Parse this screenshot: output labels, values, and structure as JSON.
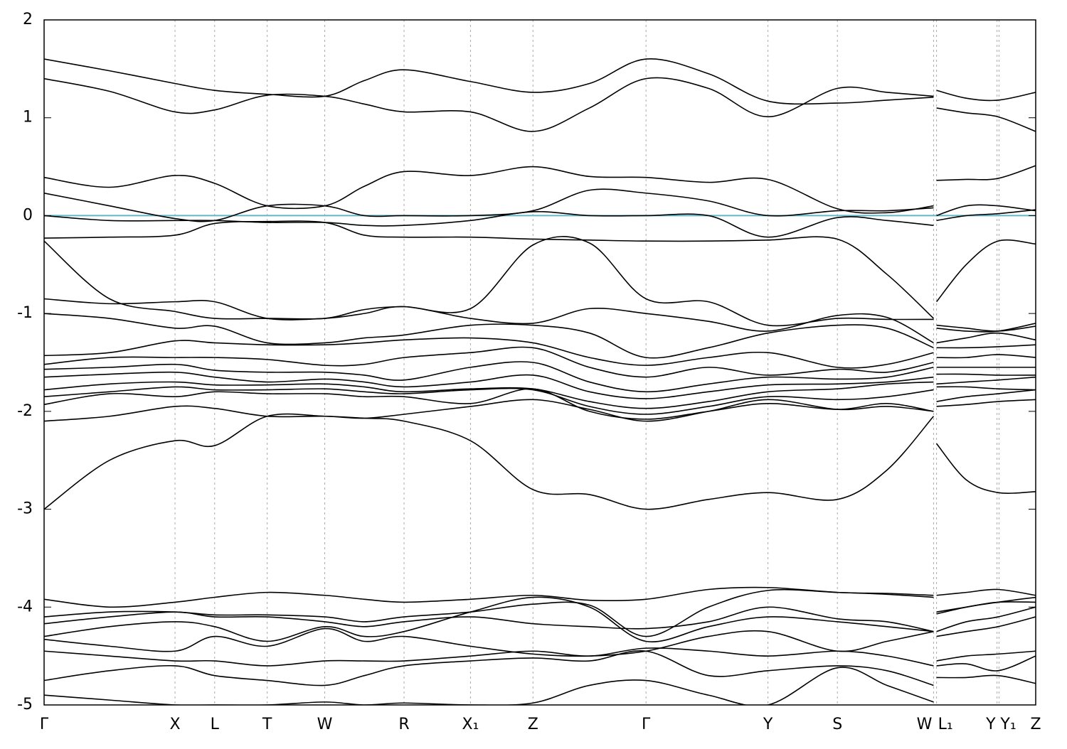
{
  "chart_data": {
    "type": "line",
    "xlim": [
      0,
      1
    ],
    "ylim": [
      -5,
      2
    ],
    "yticks": [
      -5,
      -4,
      -3,
      -2,
      -1,
      0,
      1,
      2
    ],
    "xticks": [
      {
        "value": 0,
        "label": "Γ"
      },
      {
        "value": 0.132,
        "label": "X"
      },
      {
        "value": 0.172,
        "label": "L"
      },
      {
        "value": 0.225,
        "label": "T"
      },
      {
        "value": 0.283,
        "label": "W"
      },
      {
        "value": 0.363,
        "label": "R"
      },
      {
        "value": 0.43,
        "label": "X₁"
      },
      {
        "value": 0.493,
        "label": "Z"
      },
      {
        "value": 0.607,
        "label": "Γ"
      },
      {
        "value": 0.73,
        "label": "Y"
      },
      {
        "value": 0.8,
        "label": "S"
      },
      {
        "value": 0.897,
        "label": "W"
      },
      {
        "value": 0.9,
        "label": "L₁"
      },
      {
        "value": 0.961,
        "label": "Y"
      },
      {
        "value": 0.963,
        "label": "Y₁"
      },
      {
        "value": 1,
        "label": "Z"
      }
    ],
    "xgrid": true,
    "line_color": "#000000",
    "hline": {
      "value": 0,
      "color": "#5fb7c7"
    },
    "x": [
      0,
      0.066,
      0.132,
      0.172,
      0.225,
      0.283,
      0.323,
      0.363,
      0.43,
      0.493,
      0.55,
      0.607,
      0.67,
      0.73,
      0.8,
      0.85,
      0.897,
      0.898,
      0.9,
      0.93,
      0.962,
      1
    ],
    "series": [
      {
        "values": [
          1.6,
          1.48,
          1.35,
          1.28,
          1.24,
          1.22,
          1.38,
          1.49,
          1.37,
          1.26,
          1.35,
          1.6,
          1.45,
          1.17,
          1.15,
          1.18,
          1.21,
          null,
          1.28,
          1.2,
          1.18,
          1.26
        ]
      },
      {
        "values": [
          1.4,
          1.27,
          1.06,
          1.08,
          1.23,
          1.22,
          1.14,
          1.06,
          1.06,
          0.86,
          1.1,
          1.4,
          1.3,
          1.01,
          1.3,
          1.26,
          1.22,
          null,
          1.1,
          1.05,
          1.01,
          0.86
        ]
      },
      {
        "values": [
          0.39,
          0.29,
          0.41,
          0.33,
          0.1,
          0.1,
          0.3,
          0.45,
          0.41,
          0.5,
          0.4,
          0.39,
          0.34,
          0.37,
          0.07,
          0.03,
          0.1,
          null,
          0.36,
          0.37,
          0.38,
          0.51
        ]
      },
      {
        "values": [
          0.23,
          0.1,
          -0.03,
          -0.05,
          0.1,
          0.1,
          0.0,
          0.0,
          0.0,
          0.05,
          0.26,
          0.23,
          0.15,
          0.0,
          0.05,
          0.05,
          0.08,
          null,
          0.0,
          0.1,
          0.1,
          0.05
        ]
      },
      {
        "values": [
          0.0,
          -0.05,
          -0.05,
          -0.05,
          -0.07,
          -0.07,
          -0.1,
          -0.1,
          -0.05,
          0.04,
          0.0,
          0.0,
          0.0,
          -0.22,
          -0.02,
          -0.05,
          -0.1,
          null,
          -0.05,
          0.0,
          0.02,
          0.06
        ]
      },
      {
        "values": [
          -0.23,
          -0.22,
          -0.2,
          -0.08,
          -0.06,
          -0.07,
          -0.2,
          -0.22,
          -0.22,
          -0.24,
          -0.25,
          -0.26,
          -0.26,
          -0.25,
          -0.24,
          -0.6,
          -1.05,
          null,
          -0.88,
          -0.5,
          -0.26,
          -0.29
        ]
      },
      {
        "values": [
          -0.26,
          -0.85,
          -0.98,
          -1.05,
          -1.05,
          -1.05,
          -0.96,
          -0.93,
          -0.95,
          -0.3,
          -0.28,
          -0.85,
          -0.88,
          -1.12,
          -1.05,
          -1.06,
          -1.06,
          null,
          -1.12,
          -1.15,
          -1.18,
          -1.13
        ]
      },
      {
        "values": [
          -0.85,
          -0.9,
          -0.88,
          -0.88,
          -1.05,
          -1.05,
          -1.0,
          -0.93,
          -1.05,
          -1.1,
          -0.95,
          -1.0,
          -1.08,
          -1.18,
          -1.02,
          -1.04,
          -1.3,
          null,
          -1.15,
          -1.18,
          -1.18,
          -1.1
        ]
      },
      {
        "values": [
          -1.0,
          -1.05,
          -1.15,
          -1.13,
          -1.3,
          -1.3,
          -1.25,
          -1.22,
          -1.12,
          -1.12,
          -1.2,
          -1.45,
          -1.35,
          -1.2,
          -1.12,
          -1.15,
          -1.35,
          null,
          -1.3,
          -1.25,
          -1.2,
          -1.27
        ]
      },
      {
        "values": [
          -1.43,
          -1.4,
          -1.28,
          -1.3,
          -1.32,
          -1.32,
          -1.3,
          -1.27,
          -1.25,
          -1.3,
          -1.45,
          -1.53,
          -1.45,
          -1.4,
          -1.55,
          -1.52,
          -1.4,
          null,
          -1.35,
          -1.35,
          -1.34,
          -1.32
        ]
      },
      {
        "values": [
          -1.52,
          -1.45,
          -1.45,
          -1.45,
          -1.47,
          -1.53,
          -1.52,
          -1.45,
          -1.4,
          -1.35,
          -1.55,
          -1.65,
          -1.55,
          -1.63,
          -1.57,
          -1.6,
          -1.5,
          null,
          -1.45,
          -1.45,
          -1.42,
          -1.45
        ]
      },
      {
        "values": [
          -1.57,
          -1.55,
          -1.52,
          -1.58,
          -1.6,
          -1.6,
          -1.63,
          -1.68,
          -1.55,
          -1.5,
          -1.7,
          -1.8,
          -1.72,
          -1.65,
          -1.67,
          -1.65,
          -1.55,
          null,
          -1.55,
          -1.55,
          -1.55,
          -1.55
        ]
      },
      {
        "values": [
          -1.65,
          -1.62,
          -1.6,
          -1.65,
          -1.7,
          -1.67,
          -1.7,
          -1.75,
          -1.7,
          -1.63,
          -1.8,
          -1.87,
          -1.8,
          -1.73,
          -1.72,
          -1.7,
          -1.65,
          null,
          -1.62,
          -1.62,
          -1.63,
          -1.63
        ]
      },
      {
        "values": [
          -1.78,
          -1.72,
          -1.7,
          -1.73,
          -1.73,
          -1.72,
          -1.75,
          -1.8,
          -1.77,
          -1.77,
          -1.9,
          -1.97,
          -1.9,
          -1.8,
          -1.77,
          -1.72,
          -1.7,
          null,
          -1.72,
          -1.7,
          -1.68,
          -1.65
        ]
      },
      {
        "values": [
          -1.85,
          -1.8,
          -1.75,
          -1.78,
          -1.78,
          -1.77,
          -1.8,
          -1.82,
          -1.78,
          -1.78,
          -1.95,
          -2.03,
          -1.95,
          -1.85,
          -1.88,
          -1.85,
          -1.78,
          null,
          -1.75,
          -1.75,
          -1.77,
          -1.78
        ]
      },
      {
        "values": [
          -1.93,
          -1.82,
          -1.85,
          -1.8,
          -1.82,
          -1.82,
          -1.85,
          -1.85,
          -1.92,
          -1.77,
          -2.0,
          -2.08,
          -2.0,
          -1.92,
          -1.98,
          -1.92,
          -2.0,
          null,
          -1.9,
          -1.85,
          -1.82,
          -1.78
        ]
      },
      {
        "values": [
          -2.1,
          -2.05,
          -1.95,
          -1.97,
          -2.05,
          -2.05,
          -2.07,
          -2.1,
          -2.3,
          -2.8,
          -2.85,
          -3.0,
          -2.9,
          -2.83,
          -2.9,
          -2.6,
          -2.05,
          null,
          -2.33,
          -2.7,
          -2.83,
          -2.82
        ]
      },
      {
        "values": [
          -3.0,
          -2.5,
          -2.3,
          -2.35,
          -2.05,
          -2.05,
          -2.07,
          -2.03,
          -1.95,
          -1.88,
          -1.98,
          -2.1,
          -2.0,
          -1.88,
          -1.98,
          -1.95,
          -2.0,
          null,
          -1.95,
          -1.93,
          -1.9,
          -1.88
        ]
      },
      {
        "values": [
          -3.92,
          -4.0,
          -3.95,
          -3.9,
          -3.85,
          -3.88,
          -3.92,
          -3.95,
          -3.92,
          -3.88,
          -3.93,
          -3.92,
          -3.82,
          -3.8,
          -3.85,
          -3.86,
          -3.88,
          null,
          -3.88,
          -3.85,
          -3.82,
          -3.88
        ]
      },
      {
        "values": [
          -4.1,
          -4.05,
          -4.05,
          -4.08,
          -4.08,
          -4.1,
          -4.15,
          -4.1,
          -4.05,
          -3.97,
          -3.98,
          -4.3,
          -4.0,
          -3.83,
          -3.85,
          -3.87,
          -3.9,
          null,
          -4.07,
          -4.0,
          -3.95,
          -3.9
        ]
      },
      {
        "values": [
          -4.17,
          -4.1,
          -4.05,
          -4.1,
          -4.1,
          -4.15,
          -4.2,
          -4.15,
          -4.1,
          -4.17,
          -4.2,
          -4.22,
          -4.15,
          -4.0,
          -4.12,
          -4.15,
          -4.25,
          null,
          -4.05,
          -4.0,
          -3.95,
          -3.95
        ]
      },
      {
        "values": [
          -4.3,
          -4.2,
          -4.15,
          -4.2,
          -4.35,
          -4.2,
          -4.3,
          -4.25,
          -4.05,
          -3.9,
          -4.0,
          -4.35,
          -4.2,
          -4.1,
          -4.15,
          -4.2,
          -4.25,
          null,
          -4.25,
          -4.15,
          -4.1,
          -4.0
        ]
      },
      {
        "values": [
          -4.33,
          -4.4,
          -4.45,
          -4.3,
          -4.4,
          -4.22,
          -4.35,
          -4.3,
          -4.4,
          -4.48,
          -4.5,
          -4.45,
          -4.3,
          -4.25,
          -4.45,
          -4.35,
          -4.25,
          null,
          -4.3,
          -4.25,
          -4.2,
          -4.1
        ]
      },
      {
        "values": [
          -4.45,
          -4.5,
          -4.55,
          -4.55,
          -4.6,
          -4.55,
          -4.55,
          -4.55,
          -4.5,
          -4.45,
          -4.5,
          -4.42,
          -4.45,
          -4.5,
          -4.45,
          -4.5,
          -4.6,
          null,
          -4.55,
          -4.5,
          -4.48,
          -4.45
        ]
      },
      {
        "values": [
          -4.75,
          -4.65,
          -4.6,
          -4.7,
          -4.75,
          -4.8,
          -4.7,
          -4.6,
          -4.55,
          -4.52,
          -4.55,
          -4.45,
          -4.7,
          -4.65,
          -4.6,
          -4.65,
          -4.8,
          null,
          -4.6,
          -4.58,
          -4.65,
          -4.5
        ]
      },
      {
        "values": [
          -4.9,
          -4.95,
          -5.0,
          -5.0,
          -5.0,
          -4.97,
          -5.0,
          -4.98,
          -5.0,
          -4.98,
          -4.8,
          -4.75,
          -4.9,
          -5.0,
          -4.62,
          -4.8,
          -4.97,
          null,
          -4.72,
          -4.72,
          -4.7,
          -4.78
        ]
      }
    ]
  }
}
